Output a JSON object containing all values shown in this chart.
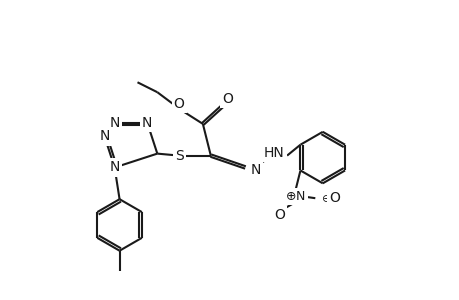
{
  "bg_color": "#ffffff",
  "line_color": "#1a1a1a",
  "lw": 1.5,
  "fs": 10,
  "figsize": [
    4.6,
    3.0
  ],
  "dpi": 100,
  "xlim": [
    0,
    460
  ],
  "ylim": [
    0,
    300
  ]
}
